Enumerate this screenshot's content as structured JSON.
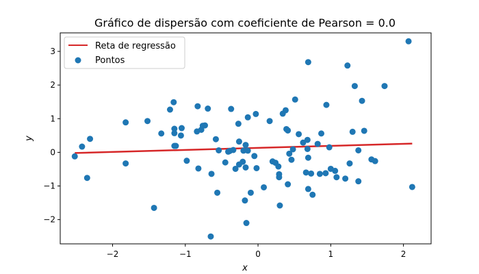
{
  "chart_data": {
    "type": "scatter",
    "title": "Gráfico de dispersão com coeficiente de Pearson = 0.0",
    "xlabel": "x",
    "ylabel": "y",
    "xlim": [
      -2.72,
      2.38
    ],
    "ylim": [
      -2.72,
      3.55
    ],
    "xticks": [
      -2,
      -1,
      0,
      1,
      2
    ],
    "yticks": [
      -2,
      -1,
      0,
      1,
      2,
      3
    ],
    "xtick_labels": [
      "−2",
      "−1",
      "0",
      "1",
      "2"
    ],
    "ytick_labels": [
      "−2",
      "−1",
      "0",
      "1",
      "2",
      "3"
    ],
    "grid": false,
    "legend_position": "upper-left",
    "legend": [
      {
        "label": "Reta de regressão",
        "kind": "line",
        "color": "#d62728"
      },
      {
        "label": "Pontos",
        "kind": "marker",
        "color": "#1f77b4"
      }
    ],
    "regression_line": {
      "name": "Reta de regressão",
      "color": "#d62728",
      "x": [
        -2.52,
        2.12
      ],
      "y": [
        -0.02,
        0.26
      ]
    },
    "series": [
      {
        "name": "Pontos",
        "color": "#1f77b4",
        "points": [
          [
            -2.52,
            -0.12
          ],
          [
            -2.42,
            0.17
          ],
          [
            -2.35,
            -0.76
          ],
          [
            -2.31,
            0.4
          ],
          [
            -1.82,
            0.89
          ],
          [
            -1.82,
            -0.33
          ],
          [
            -1.52,
            0.93
          ],
          [
            -1.43,
            -1.65
          ],
          [
            -1.33,
            0.56
          ],
          [
            -1.21,
            1.27
          ],
          [
            -1.16,
            1.49
          ],
          [
            -1.15,
            0.7
          ],
          [
            -1.15,
            0.57
          ],
          [
            -1.15,
            0.19
          ],
          [
            -1.13,
            0.19
          ],
          [
            -1.06,
            0.5
          ],
          [
            -1.05,
            0.72
          ],
          [
            -0.98,
            -0.25
          ],
          [
            -0.84,
            0.62
          ],
          [
            -0.83,
            1.37
          ],
          [
            -0.82,
            -0.48
          ],
          [
            -0.78,
            0.67
          ],
          [
            -0.76,
            0.79
          ],
          [
            -0.73,
            0.8
          ],
          [
            -0.69,
            1.3
          ],
          [
            -0.65,
            -2.5
          ],
          [
            -0.64,
            -0.64
          ],
          [
            -0.58,
            0.39
          ],
          [
            -0.56,
            -1.2
          ],
          [
            -0.54,
            0.06
          ],
          [
            -0.45,
            -0.3
          ],
          [
            -0.41,
            0.02
          ],
          [
            -0.39,
            0.04
          ],
          [
            -0.37,
            1.29
          ],
          [
            -0.34,
            0.07
          ],
          [
            -0.31,
            -0.49
          ],
          [
            -0.27,
            0.85
          ],
          [
            -0.26,
            0.32
          ],
          [
            -0.26,
            -0.36
          ],
          [
            -0.21,
            -0.28
          ],
          [
            -0.2,
            0.05
          ],
          [
            -0.18,
            -1.43
          ],
          [
            -0.17,
            -0.45
          ],
          [
            -0.17,
            0.22
          ],
          [
            -0.16,
            -2.1
          ],
          [
            -0.14,
            1.04
          ],
          [
            -0.14,
            0.05
          ],
          [
            -0.1,
            -1.2
          ],
          [
            -0.05,
            -0.11
          ],
          [
            -0.03,
            1.14
          ],
          [
            -0.02,
            -0.47
          ],
          [
            0.08,
            -1.04
          ],
          [
            0.16,
            0.93
          ],
          [
            0.2,
            -0.27
          ],
          [
            0.24,
            -0.31
          ],
          [
            0.28,
            -0.42
          ],
          [
            0.29,
            -0.65
          ],
          [
            0.29,
            -0.74
          ],
          [
            0.3,
            -1.58
          ],
          [
            0.34,
            1.15
          ],
          [
            0.38,
            1.25
          ],
          [
            0.39,
            0.69
          ],
          [
            0.41,
            0.65
          ],
          [
            0.41,
            -0.95
          ],
          [
            0.43,
            -0.04
          ],
          [
            0.46,
            -0.22
          ],
          [
            0.48,
            0.09
          ],
          [
            0.51,
            1.57
          ],
          [
            0.56,
            0.54
          ],
          [
            0.62,
            0.29
          ],
          [
            0.66,
            -0.6
          ],
          [
            0.68,
            0.37
          ],
          [
            0.68,
            0.1
          ],
          [
            0.69,
            -0.16
          ],
          [
            0.69,
            2.68
          ],
          [
            0.69,
            -1.09
          ],
          [
            0.73,
            -0.63
          ],
          [
            0.75,
            -1.26
          ],
          [
            0.82,
            0.25
          ],
          [
            0.85,
            -0.64
          ],
          [
            0.87,
            0.56
          ],
          [
            0.93,
            -0.62
          ],
          [
            0.94,
            1.41
          ],
          [
            0.98,
            0.15
          ],
          [
            1.0,
            -0.49
          ],
          [
            1.06,
            -0.55
          ],
          [
            1.08,
            -0.74
          ],
          [
            1.2,
            -0.78
          ],
          [
            1.23,
            2.58
          ],
          [
            1.26,
            -0.33
          ],
          [
            1.3,
            0.61
          ],
          [
            1.33,
            1.97
          ],
          [
            1.38,
            0.06
          ],
          [
            1.38,
            -0.86
          ],
          [
            1.43,
            1.53
          ],
          [
            1.46,
            0.64
          ],
          [
            1.56,
            -0.21
          ],
          [
            1.61,
            -0.26
          ],
          [
            1.74,
            1.97
          ],
          [
            2.07,
            3.3
          ],
          [
            2.12,
            -1.03
          ]
        ]
      }
    ]
  }
}
